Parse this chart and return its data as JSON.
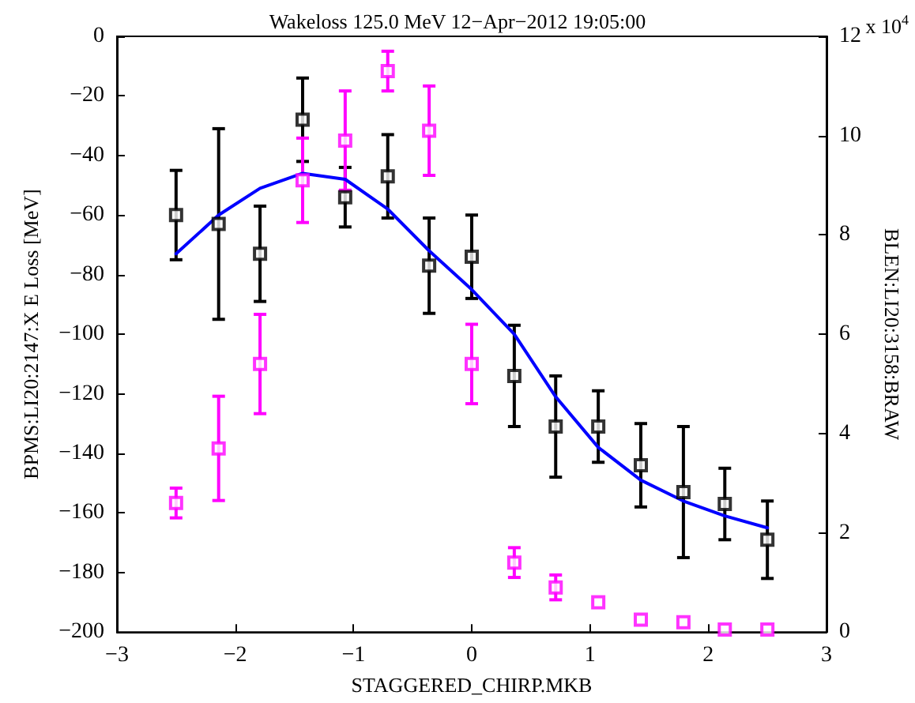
{
  "chart_data": {
    "type": "scatter",
    "title": "Wakeloss 125.0 MeV 12−Apr−2012 19:05:00",
    "xlabel": "STAGGERED_CHIRP.MKB",
    "ylabel": "BPMS:LI20:2147:X E Loss [MeV]",
    "y2label": "BLEN:LI20:3158:BRAW",
    "annotations": [
      "x 10$^{4}$"
    ],
    "x": [
      -2.5,
      -2.14,
      -1.79,
      -1.43,
      -1.07,
      -0.71,
      -0.36,
      0,
      0.36,
      0.71,
      1.07,
      1.43,
      1.79,
      2.14,
      2.5
    ],
    "series": [
      {
        "color": "#000000",
        "values": [
          -60,
          -63,
          -73,
          -28,
          -54,
          -47,
          -77,
          -74,
          -114,
          -131,
          -131,
          -144,
          -153,
          -157,
          -169
        ],
        "errors": [
          15,
          32,
          16,
          14,
          10,
          14,
          16,
          14,
          17,
          17,
          12,
          14,
          22,
          12,
          13
        ]
      },
      {
        "color": "#ff00ff",
        "axis": "y2",
        "values": [
          2.6,
          3.7,
          5.4,
          9.1,
          9.9,
          11.3,
          10.1,
          5.4,
          1.4,
          0.9,
          0.6,
          0.25,
          0.2,
          0.05,
          0.05
        ],
        "errors": [
          0.3,
          1.05,
          1.0,
          0.85,
          1.0,
          0.4,
          0.9,
          0.8,
          0.3,
          0.25,
          null,
          null,
          null,
          null,
          null
        ]
      },
      {
        "type": "line",
        "color": "#0000ff",
        "marker": "none",
        "values": [
          -73,
          -60,
          -51,
          -46,
          -48,
          -58,
          -72,
          -85,
          -100,
          -121,
          -138,
          -149,
          -156,
          -161,
          -165
        ]
      }
    ],
    "marker": "square",
    "line_style": "solid",
    "grid": false,
    "xlim": [
      -3,
      3
    ],
    "xticks": [
      -3,
      -2,
      -1,
      0,
      1,
      2,
      3
    ],
    "ylim": [
      -200,
      0
    ],
    "yticks": [
      -200,
      -180,
      -160,
      -140,
      -120,
      -100,
      -80,
      -60,
      -40,
      -20,
      0
    ],
    "y2lim": [
      0,
      12
    ],
    "y2ticks": [
      0,
      2,
      4,
      6,
      8,
      10,
      12
    ]
  }
}
